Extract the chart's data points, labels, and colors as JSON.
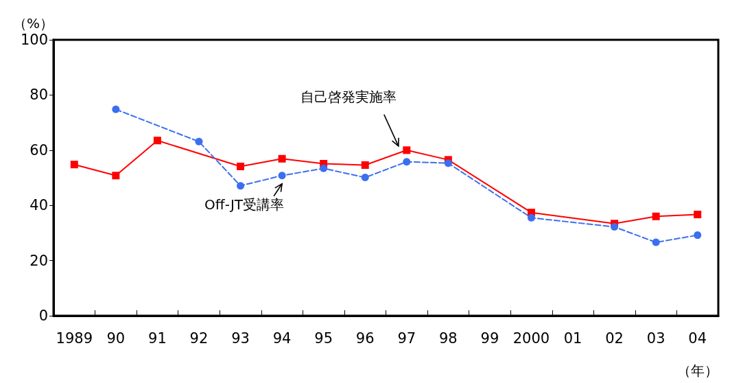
{
  "chart_data": {
    "type": "line",
    "xlabel": "（年）",
    "ylabel": "（%）",
    "categories": [
      "1989",
      "90",
      "91",
      "92",
      "93",
      "94",
      "95",
      "96",
      "97",
      "98",
      "99",
      "2000",
      "01",
      "02",
      "03",
      "04"
    ],
    "series": [
      {
        "name": "自己啓発実施率",
        "color": "#ff0000",
        "marker": "square",
        "line_style": "solid",
        "values": [
          54.8,
          50.8,
          63.5,
          null,
          54.1,
          56.9,
          55.1,
          54.6,
          60,
          56.5,
          null,
          37.4,
          null,
          33.4,
          36,
          36.7
        ]
      },
      {
        "name": "Off-JT受講率",
        "color": "#3c6ff0",
        "marker": "circle",
        "line_style": "dashed",
        "values": [
          null,
          74.8,
          null,
          63.1,
          47.1,
          50.8,
          53.4,
          50.1,
          55.8,
          55.3,
          null,
          35.5,
          null,
          32.2,
          26.6,
          29.2
        ]
      }
    ],
    "ylim": [
      0,
      100
    ],
    "yticks": [
      0,
      20,
      40,
      60,
      80,
      100
    ],
    "grid": false,
    "legend": false
  }
}
